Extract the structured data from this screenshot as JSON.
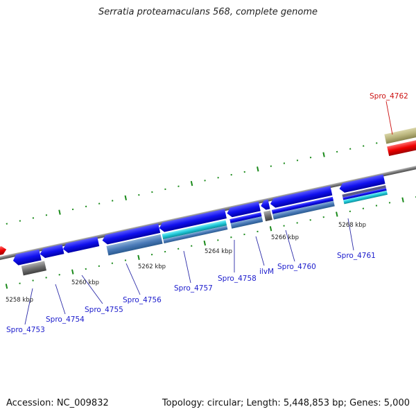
{
  "title": "Serratia proteamaculans 568, complete genome",
  "footer": {
    "accession": "Accession: NC_009832",
    "summary": "Topology: circular; Length: 5,448,853 bp; Genes: 5,000"
  },
  "colors": {
    "cds_forward": "#1010ee",
    "cds_reverse": "#1010ee",
    "rna": "#20c8d8",
    "pseudo_grey": "#707070",
    "highlight_red": "#ee0000",
    "feature_olive": "#b9b47c",
    "backbone": "#7a7a7a",
    "tick_green": "#1a8a1a",
    "label_blue": "#1a1acc",
    "label_red": "#cc1111"
  },
  "gene_labels": [
    {
      "id": "Spro_4753",
      "text": "Spro_4753"
    },
    {
      "id": "Spro_4754",
      "text": "Spro_4754"
    },
    {
      "id": "Spro_4755",
      "text": "Spro_4755"
    },
    {
      "id": "Spro_4756",
      "text": "Spro_4756"
    },
    {
      "id": "Spro_4757",
      "text": "Spro_4757"
    },
    {
      "id": "Spro_4758",
      "text": "Spro_4758"
    },
    {
      "id": "ilvM",
      "text": "ilvM"
    },
    {
      "id": "Spro_4760",
      "text": "Spro_4760"
    },
    {
      "id": "Spro_4761",
      "text": "Spro_4761"
    },
    {
      "id": "Spro_4762",
      "text": "Spro_4762"
    }
  ],
  "scale_labels": [
    "5258 kbp",
    "5260 kbp",
    "5262 kbp",
    "5264 kbp",
    "5266 kbp",
    "5268 kbp"
  ]
}
